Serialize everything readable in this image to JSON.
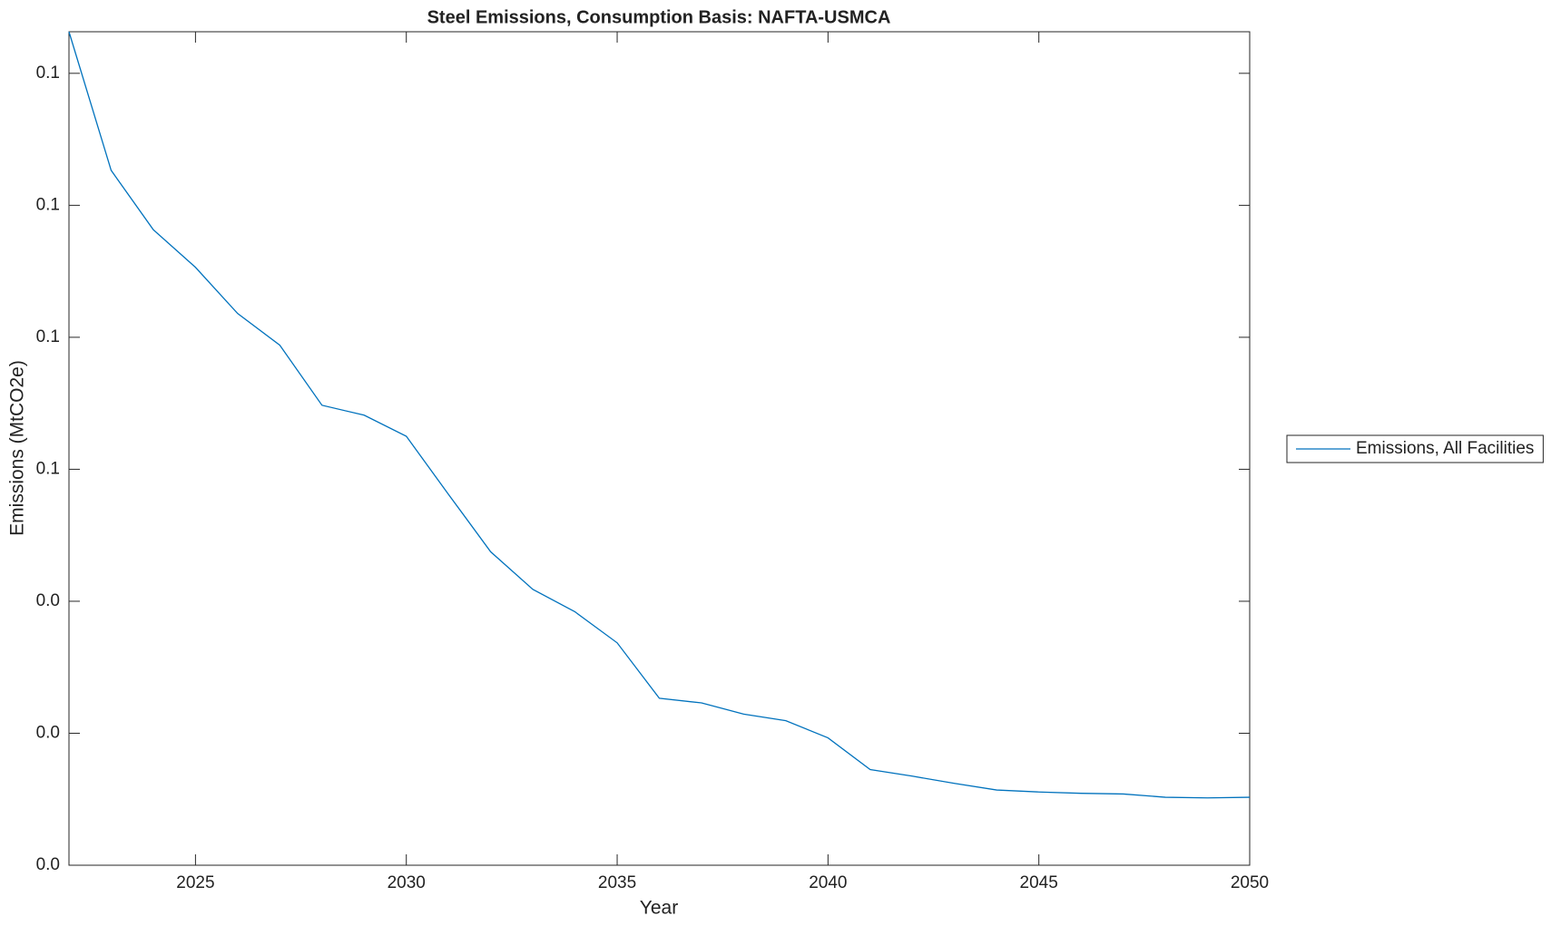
{
  "chart_data": {
    "type": "line",
    "title": "Steel Emissions, Consumption Basis: NAFTA-USMCA",
    "x_label": "Year",
    "y_label": "Emissions (MtCO2e)",
    "x": [
      2022,
      2023,
      2024,
      2025,
      2026,
      2027,
      2028,
      2029,
      2030,
      2031,
      2032,
      2033,
      2034,
      2035,
      2036,
      2037,
      2038,
      2039,
      2040,
      2041,
      2042,
      2043,
      2044,
      2045,
      2046,
      2047,
      2048,
      2049,
      2050
    ],
    "series": [
      {
        "name": "Emissions, All Facilities",
        "color": "#0072bd",
        "values": [
          0.1263,
          0.1053,
          0.0963,
          0.0906,
          0.0836,
          0.0788,
          0.0697,
          0.0682,
          0.065,
          0.0562,
          0.0475,
          0.0418,
          0.0384,
          0.0337,
          0.0253,
          0.0246,
          0.0229,
          0.0219,
          0.0193,
          0.0145,
          0.0135,
          0.0124,
          0.0114,
          0.0111,
          0.0109,
          0.0108,
          0.0103,
          0.0102,
          0.0103
        ]
      }
    ],
    "xlim": [
      2022,
      2050
    ],
    "xticks": [
      2025,
      2030,
      2035,
      2040,
      2045,
      2050
    ],
    "ylim": [
      0,
      0.1263
    ],
    "yticks": [
      {
        "value": 0,
        "label": "0.0"
      },
      {
        "value": 0.02,
        "label": "0.0"
      },
      {
        "value": 0.04,
        "label": "0.0"
      },
      {
        "value": 0.06,
        "label": "0.1"
      },
      {
        "value": 0.08,
        "label": "0.1"
      },
      {
        "value": 0.1,
        "label": "0.1"
      },
      {
        "value": 0.12,
        "label": "0.1"
      }
    ],
    "grid": false,
    "legend": "outside-right"
  }
}
